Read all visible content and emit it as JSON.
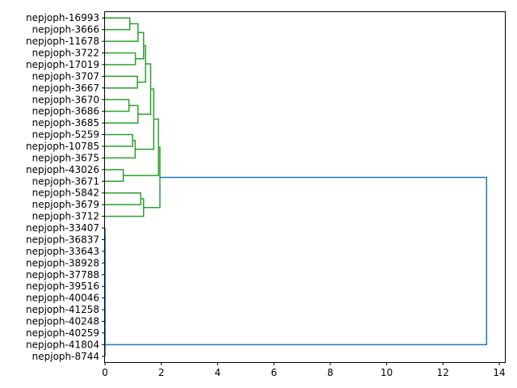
{
  "chart_data": {
    "type": "dendrogram",
    "orientation": "left",
    "title": "",
    "xlabel": "",
    "ylabel": "",
    "xlim": [
      0,
      14.2
    ],
    "xticks": [
      0,
      2,
      4,
      6,
      8,
      10,
      12,
      14
    ],
    "xtick_labels": [
      "0",
      "2",
      "4",
      "6",
      "8",
      "10",
      "12",
      "14"
    ],
    "grid": false,
    "leaves": [
      "nepjoph-16993",
      "nepjoph-3666",
      "nepjoph-11678",
      "nepjoph-3722",
      "nepjoph-17019",
      "nepjoph-3707",
      "nepjoph-3667",
      "nepjoph-3670",
      "nepjoph-3686",
      "nepjoph-3685",
      "nepjoph-5259",
      "nepjoph-10785",
      "nepjoph-3675",
      "nepjoph-43026",
      "nepjoph-3671",
      "nepjoph-5842",
      "nepjoph-3679",
      "nepjoph-3712",
      "nepjoph-33407",
      "nepjoph-36837",
      "nepjoph-33643",
      "nepjoph-38928",
      "nepjoph-37788",
      "nepjoph-39516",
      "nepjoph-40046",
      "nepjoph-41258",
      "nepjoph-40248",
      "nepjoph-40259",
      "nepjoph-41804",
      "nepjoph-8744"
    ],
    "merges": [
      {
        "a": [
          "leaf",
          0
        ],
        "b": [
          "leaf",
          1
        ],
        "height": 0.88,
        "color": "#2ca02c"
      },
      {
        "a": [
          "node",
          0
        ],
        "b": [
          "leaf",
          2
        ],
        "height": 1.17,
        "color": "#2ca02c"
      },
      {
        "a": [
          "leaf",
          3
        ],
        "b": [
          "leaf",
          4
        ],
        "height": 1.08,
        "color": "#2ca02c"
      },
      {
        "a": [
          "node",
          1
        ],
        "b": [
          "node",
          2
        ],
        "height": 1.37,
        "color": "#2ca02c"
      },
      {
        "a": [
          "leaf",
          5
        ],
        "b": [
          "leaf",
          6
        ],
        "height": 1.15,
        "color": "#2ca02c"
      },
      {
        "a": [
          "node",
          3
        ],
        "b": [
          "node",
          4
        ],
        "height": 1.44,
        "color": "#2ca02c"
      },
      {
        "a": [
          "leaf",
          7
        ],
        "b": [
          "leaf",
          8
        ],
        "height": 0.85,
        "color": "#2ca02c"
      },
      {
        "a": [
          "node",
          6
        ],
        "b": [
          "leaf",
          9
        ],
        "height": 1.17,
        "color": "#2ca02c"
      },
      {
        "a": [
          "node",
          5
        ],
        "b": [
          "node",
          7
        ],
        "height": 1.62,
        "color": "#2ca02c"
      },
      {
        "a": [
          "leaf",
          10
        ],
        "b": [
          "leaf",
          11
        ],
        "height": 0.98,
        "color": "#2ca02c"
      },
      {
        "a": [
          "node",
          9
        ],
        "b": [
          "leaf",
          12
        ],
        "height": 1.07,
        "color": "#2ca02c"
      },
      {
        "a": [
          "node",
          8
        ],
        "b": [
          "node",
          10
        ],
        "height": 1.73,
        "color": "#2ca02c"
      },
      {
        "a": [
          "leaf",
          13
        ],
        "b": [
          "leaf",
          14
        ],
        "height": 0.65,
        "color": "#2ca02c"
      },
      {
        "a": [
          "node",
          11
        ],
        "b": [
          "node",
          12
        ],
        "height": 1.9,
        "color": "#2ca02c"
      },
      {
        "a": [
          "leaf",
          15
        ],
        "b": [
          "leaf",
          16
        ],
        "height": 1.27,
        "color": "#2ca02c"
      },
      {
        "a": [
          "node",
          14
        ],
        "b": [
          "leaf",
          17
        ],
        "height": 1.37,
        "color": "#2ca02c"
      },
      {
        "a": [
          "node",
          13
        ],
        "b": [
          "node",
          15
        ],
        "height": 1.95,
        "color": "#2ca02c"
      },
      {
        "a": [
          "leaf",
          18
        ],
        "b": [
          "leaf",
          19
        ],
        "height": 0,
        "color": "#1f77b4"
      },
      {
        "a": [
          "node",
          17
        ],
        "b": [
          "leaf",
          20
        ],
        "height": 0,
        "color": "#1f77b4"
      },
      {
        "a": [
          "node",
          18
        ],
        "b": [
          "leaf",
          21
        ],
        "height": 0,
        "color": "#1f77b4"
      },
      {
        "a": [
          "node",
          19
        ],
        "b": [
          "leaf",
          22
        ],
        "height": 0,
        "color": "#1f77b4"
      },
      {
        "a": [
          "node",
          20
        ],
        "b": [
          "leaf",
          23
        ],
        "height": 0,
        "color": "#1f77b4"
      },
      {
        "a": [
          "node",
          21
        ],
        "b": [
          "leaf",
          24
        ],
        "height": 0,
        "color": "#1f77b4"
      },
      {
        "a": [
          "node",
          22
        ],
        "b": [
          "leaf",
          25
        ],
        "height": 0,
        "color": "#1f77b4"
      },
      {
        "a": [
          "node",
          23
        ],
        "b": [
          "leaf",
          26
        ],
        "height": 0,
        "color": "#1f77b4"
      },
      {
        "a": [
          "node",
          24
        ],
        "b": [
          "leaf",
          27
        ],
        "height": 0,
        "color": "#1f77b4"
      },
      {
        "a": [
          "node",
          25
        ],
        "b": [
          "leaf",
          28
        ],
        "height": 0,
        "color": "#1f77b4"
      },
      {
        "a": [
          "node",
          26
        ],
        "b": [
          "leaf",
          29
        ],
        "height": 0,
        "color": "#1f77b4"
      },
      {
        "a": [
          "node",
          16
        ],
        "b": [
          "node",
          27
        ],
        "height": 13.55,
        "color": "#1f77b4"
      }
    ],
    "colors": {
      "cluster": "#2ca02c",
      "above_threshold": "#1f77b4",
      "axes": "#000000"
    }
  }
}
